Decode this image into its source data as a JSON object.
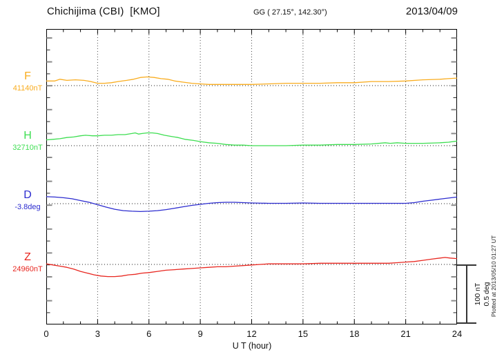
{
  "header": {
    "station": "Chichijima (CBI)  [KMO]",
    "gg": "GG ( 27.15°, 142.30°)",
    "date": "2013/04/09"
  },
  "channels": [
    {
      "id": "F",
      "label": "F",
      "value": "41140nT",
      "color": "#F9AC1E"
    },
    {
      "id": "H",
      "label": "H",
      "value": "32710nT",
      "color": "#3CDE50"
    },
    {
      "id": "D",
      "label": "D",
      "value": "-3.8deg",
      "color": "#2B2BCF"
    },
    {
      "id": "Z",
      "label": "Z",
      "value": "24960nT",
      "color": "#E8261F"
    }
  ],
  "xaxis": {
    "label": "U T (hour)",
    "ticks": [
      "0",
      "3",
      "6",
      "9",
      "12",
      "15",
      "18",
      "21",
      "24"
    ]
  },
  "scalebar": {
    "line1": "100 nT",
    "line2": "0.5 deg"
  },
  "plotted_at": "Plotted at 2013/05/10 01:27 UT",
  "chart_data": {
    "type": "line",
    "title": "Chichijima (CBI) [KMO] magnetogram, 2013/04/09",
    "xlabel": "U T (hour)",
    "x_range": [
      0,
      24
    ],
    "x_ticks": [
      0,
      3,
      6,
      9,
      12,
      15,
      18,
      21,
      24
    ],
    "grid": "dotted vertical every 3 h; dotted horizontal reference line per trace",
    "legend_position": "left margin",
    "amplitude_scale": {
      "nT_per_bar": 100,
      "deg_per_bar": 0.5
    },
    "series": [
      {
        "name": "F",
        "unit": "nT",
        "reference": 41140,
        "points": [
          [
            0,
            8
          ],
          [
            0.5,
            8
          ],
          [
            0.8,
            11
          ],
          [
            1.2,
            9
          ],
          [
            1.7,
            10
          ],
          [
            2.2,
            9
          ],
          [
            2.6,
            7
          ],
          [
            3,
            4
          ],
          [
            3.4,
            4
          ],
          [
            3.8,
            5
          ],
          [
            4.2,
            7
          ],
          [
            4.7,
            9
          ],
          [
            5.1,
            11
          ],
          [
            5.5,
            14
          ],
          [
            5.9,
            15
          ],
          [
            6.3,
            14
          ],
          [
            6.7,
            12
          ],
          [
            7.1,
            11
          ],
          [
            7.5,
            8
          ],
          [
            8,
            6
          ],
          [
            8.5,
            4
          ],
          [
            9,
            3
          ],
          [
            9.5,
            2
          ],
          [
            10,
            2
          ],
          [
            11,
            2
          ],
          [
            12,
            2
          ],
          [
            13,
            3
          ],
          [
            14,
            4
          ],
          [
            15,
            4
          ],
          [
            16,
            4
          ],
          [
            17,
            5
          ],
          [
            18,
            5
          ],
          [
            19,
            7
          ],
          [
            20,
            7
          ],
          [
            21,
            8
          ],
          [
            22,
            10
          ],
          [
            23,
            11
          ],
          [
            23.5,
            12
          ],
          [
            24,
            13
          ]
        ]
      },
      {
        "name": "H",
        "unit": "nT",
        "reference": 32710,
        "points": [
          [
            0,
            10
          ],
          [
            0.4,
            11
          ],
          [
            0.8,
            12
          ],
          [
            1.2,
            14
          ],
          [
            1.6,
            15
          ],
          [
            2,
            17
          ],
          [
            2.3,
            18
          ],
          [
            2.7,
            17
          ],
          [
            3,
            17
          ],
          [
            3.4,
            18
          ],
          [
            3.8,
            18
          ],
          [
            4.2,
            19
          ],
          [
            4.6,
            19
          ],
          [
            5,
            21
          ],
          [
            5.2,
            22
          ],
          [
            5.4,
            20
          ],
          [
            5.6,
            21
          ],
          [
            5.9,
            22
          ],
          [
            6.2,
            22
          ],
          [
            6.5,
            21
          ],
          [
            6.9,
            18
          ],
          [
            7.3,
            16
          ],
          [
            7.7,
            14
          ],
          [
            8.1,
            11
          ],
          [
            8.6,
            9
          ],
          [
            9,
            7
          ],
          [
            9.5,
            5
          ],
          [
            10,
            4
          ],
          [
            10.5,
            2
          ],
          [
            11,
            1
          ],
          [
            11.5,
            1
          ],
          [
            12,
            0
          ],
          [
            13,
            0
          ],
          [
            14,
            0
          ],
          [
            15,
            1
          ],
          [
            16,
            1
          ],
          [
            17,
            2
          ],
          [
            18,
            2
          ],
          [
            19,
            3
          ],
          [
            19.8,
            5
          ],
          [
            20.1,
            4
          ],
          [
            20.5,
            5
          ],
          [
            21,
            4
          ],
          [
            21.5,
            4
          ],
          [
            22,
            4
          ],
          [
            23,
            5
          ],
          [
            23.5,
            6
          ],
          [
            24,
            8
          ]
        ]
      },
      {
        "name": "D",
        "unit": "deg",
        "reference": -3.8,
        "points": [
          [
            0,
            0.06
          ],
          [
            0.5,
            0.057
          ],
          [
            1,
            0.051
          ],
          [
            1.5,
            0.042
          ],
          [
            2,
            0.027
          ],
          [
            2.5,
            0.012
          ],
          [
            3,
            -0.009
          ],
          [
            3.5,
            -0.03
          ],
          [
            4,
            -0.048
          ],
          [
            4.5,
            -0.06
          ],
          [
            5,
            -0.065
          ],
          [
            5.5,
            -0.068
          ],
          [
            6,
            -0.065
          ],
          [
            6.5,
            -0.06
          ],
          [
            7,
            -0.051
          ],
          [
            7.5,
            -0.039
          ],
          [
            8,
            -0.027
          ],
          [
            8.5,
            -0.015
          ],
          [
            9,
            -0.006
          ],
          [
            9.5,
            0.003
          ],
          [
            10,
            0.009
          ],
          [
            10.5,
            0.012
          ],
          [
            11,
            0.012
          ],
          [
            11.5,
            0.009
          ],
          [
            12,
            0.006
          ],
          [
            13,
            0.003
          ],
          [
            14,
            0.003
          ],
          [
            15,
            0.006
          ],
          [
            16,
            0.003
          ],
          [
            17,
            0.003
          ],
          [
            18,
            0.003
          ],
          [
            19,
            0.003
          ],
          [
            20,
            0.003
          ],
          [
            21,
            0.003
          ],
          [
            21.5,
            0.009
          ],
          [
            22,
            0.021
          ],
          [
            22.5,
            0.03
          ],
          [
            23,
            0.039
          ],
          [
            23.5,
            0.048
          ],
          [
            24,
            0.057
          ]
        ]
      },
      {
        "name": "Z",
        "unit": "nT",
        "reference": 24960,
        "points": [
          [
            0,
            1
          ],
          [
            0.4,
            -1
          ],
          [
            0.8,
            -3
          ],
          [
            1.2,
            -5
          ],
          [
            1.6,
            -8
          ],
          [
            2,
            -12
          ],
          [
            2.4,
            -15
          ],
          [
            2.8,
            -18
          ],
          [
            3.2,
            -20
          ],
          [
            3.6,
            -21
          ],
          [
            4,
            -21
          ],
          [
            4.4,
            -20
          ],
          [
            4.8,
            -18
          ],
          [
            5.2,
            -17
          ],
          [
            5.6,
            -15
          ],
          [
            6,
            -14
          ],
          [
            6.5,
            -12
          ],
          [
            7,
            -10
          ],
          [
            7.5,
            -9
          ],
          [
            8,
            -8
          ],
          [
            8.5,
            -7
          ],
          [
            9,
            -6
          ],
          [
            9.5,
            -5
          ],
          [
            10,
            -4
          ],
          [
            10.5,
            -4
          ],
          [
            11,
            -3
          ],
          [
            11.5,
            -2
          ],
          [
            12,
            -1
          ],
          [
            12.5,
            0
          ],
          [
            13,
            1
          ],
          [
            14,
            1
          ],
          [
            15,
            1
          ],
          [
            16,
            2
          ],
          [
            17,
            2
          ],
          [
            18,
            2
          ],
          [
            19,
            2
          ],
          [
            20,
            2
          ],
          [
            20.5,
            3
          ],
          [
            21,
            4
          ],
          [
            21.5,
            5
          ],
          [
            22,
            7
          ],
          [
            22.5,
            9
          ],
          [
            23,
            11
          ],
          [
            23.3,
            12
          ],
          [
            23.6,
            11
          ],
          [
            24,
            10
          ]
        ]
      }
    ]
  }
}
